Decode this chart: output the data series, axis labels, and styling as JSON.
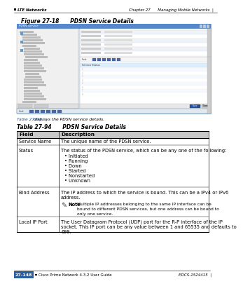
{
  "bg_color": "#ffffff",
  "header_left": "LTE Networks",
  "header_right": "Chapter 27      Managing Mobile Networks",
  "figure_label": "Figure 27-18      PDSN Service Details",
  "table_ref_link": "Table 27-94",
  "table_ref_rest": " displays the PDSN service details.",
  "table_title": "Table 27-94      PDSN Service Details",
  "col_headers": [
    "Field",
    "Description"
  ],
  "rows": [
    {
      "field": "Service Name",
      "description": "The unique name of the PDSN service."
    },
    {
      "field": "Status",
      "description": "The status of the PDSN service, which can be any one of the following:",
      "bullets": [
        "Initiated",
        "Running",
        "Down",
        "Started",
        "Nonstarted",
        "Unknown"
      ]
    },
    {
      "field": "Bind Address",
      "description": "The IP address to which the service is bound. This can be a IPv4 or IPv6 address.",
      "note": "Multiple IP addresses belonging to the same IP interface can be bound to different PDSN services, but one address can be bound to only one service."
    },
    {
      "field": "Local IP Port",
      "description": "The User Datagram Protocol (UDP) port for the R-P interface of the IP socket. This IP port can be any value between 1 and 65535 and defaults to 699."
    }
  ],
  "footer_left_box": "27-148",
  "footer_left_box_bg": "#2c5f9e",
  "footer_center": "Cisco Prime Network 4.3.2 User Guide",
  "footer_right": "EDCS-1524415",
  "link_color": "#1a5296",
  "text_color": "#000000",
  "small_font": 4.0,
  "table_font": 4.8,
  "header_font": 5.5,
  "col_header_bg": "#c8c8c8"
}
